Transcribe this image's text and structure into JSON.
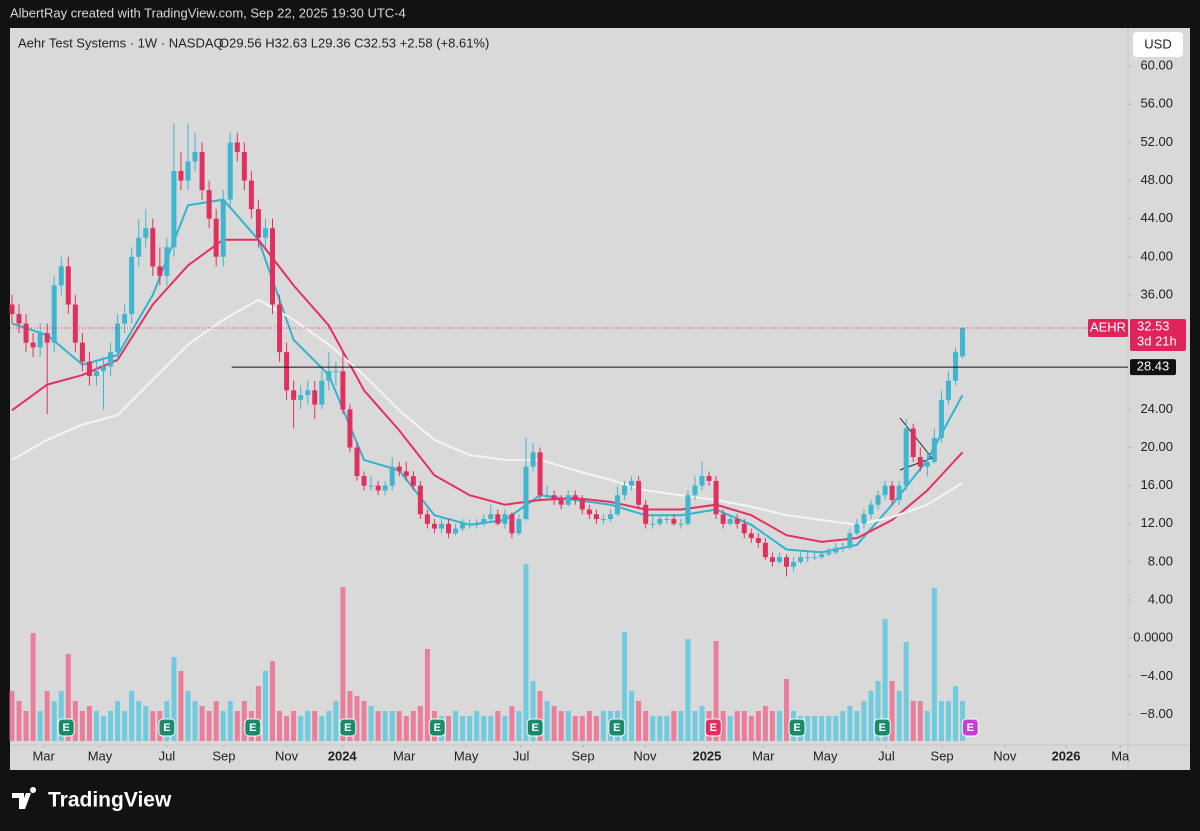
{
  "header": {
    "credit": "AlbertRay created with TradingView.com, Sep 22, 2025 19:30 UTC-4",
    "symbol": "Aehr Test Systems · 1W · NASDAQ",
    "ohlc": "O29.56 H32.63 L29.36 C32.53 +2.58 (+8.61%)",
    "currency": "USD"
  },
  "footer": {
    "brand": "TradingView"
  },
  "chart_data": {
    "type": "candlestick",
    "up_color": "#3fb5cf",
    "down_color": "#e0305e",
    "volume_up_color": "#5ec8de",
    "volume_down_color": "#ec6f91",
    "xlim": [
      -0.28,
      158.5
    ],
    "ylim": [
      -11.2,
      64
    ],
    "yticks": [
      {
        "value": 60,
        "label": "60.00"
      },
      {
        "value": 56,
        "label": "56.00"
      },
      {
        "value": 52,
        "label": "52.00"
      },
      {
        "value": 48,
        "label": "48.00"
      },
      {
        "value": 44,
        "label": "44.00"
      },
      {
        "value": 40,
        "label": "40.00"
      },
      {
        "value": 36,
        "label": "36.00"
      },
      {
        "value": 24,
        "label": "24.00"
      },
      {
        "value": 20,
        "label": "20.00"
      },
      {
        "value": 16,
        "label": "16.00"
      },
      {
        "value": 12,
        "label": "12.00"
      },
      {
        "value": 8,
        "label": "8.00"
      },
      {
        "value": 4,
        "label": "4.00"
      },
      {
        "value": 0,
        "label": "0.0000"
      },
      {
        "value": -4,
        "label": "−4.00"
      },
      {
        "value": -8,
        "label": "−8.00"
      }
    ],
    "xticks": [
      {
        "value": 4.5,
        "label": "Mar"
      },
      {
        "value": 12.5,
        "label": "May"
      },
      {
        "value": 22,
        "label": "Jul"
      },
      {
        "value": 30.1,
        "label": "Sep"
      },
      {
        "value": 39,
        "label": "Nov"
      },
      {
        "value": 46.9,
        "label": "2024"
      },
      {
        "value": 55.7,
        "label": "Mar"
      },
      {
        "value": 64.5,
        "label": "May"
      },
      {
        "value": 72.3,
        "label": "Jul"
      },
      {
        "value": 81.1,
        "label": "Sep"
      },
      {
        "value": 89.9,
        "label": "Nov"
      },
      {
        "value": 98.7,
        "label": "2025"
      },
      {
        "value": 106.7,
        "label": "Mar"
      },
      {
        "value": 115.5,
        "label": "May"
      },
      {
        "value": 124.2,
        "label": "Jul"
      },
      {
        "value": 132.1,
        "label": "Sep"
      },
      {
        "value": 141,
        "label": "Nov"
      },
      {
        "value": 149.7,
        "label": "2026"
      },
      {
        "value": 157.4,
        "label": "Ma"
      }
    ],
    "candles": [
      [
        35,
        36,
        33,
        34
      ],
      [
        34,
        35,
        32,
        33
      ],
      [
        33,
        34,
        30,
        31
      ],
      [
        31,
        32,
        29.5,
        30.5
      ],
      [
        30.5,
        33,
        29.5,
        32
      ],
      [
        32,
        33,
        23.5,
        31
      ],
      [
        31,
        38,
        30,
        37
      ],
      [
        37,
        40,
        36,
        39
      ],
      [
        39,
        40,
        34,
        35
      ],
      [
        35,
        36,
        30,
        31
      ],
      [
        31,
        32,
        28,
        29
      ],
      [
        29,
        30,
        26.5,
        27.5
      ],
      [
        27.5,
        29,
        26.5,
        28
      ],
      [
        28,
        29.5,
        24,
        28.5
      ],
      [
        28.5,
        31,
        27.5,
        30
      ],
      [
        30,
        34,
        29,
        33
      ],
      [
        33,
        35,
        32,
        34
      ],
      [
        34,
        41,
        33,
        40
      ],
      [
        40,
        44,
        39,
        42
      ],
      [
        42,
        45,
        41,
        43
      ],
      [
        43,
        44,
        38,
        39
      ],
      [
        39,
        41,
        37,
        38
      ],
      [
        38,
        42,
        37,
        41
      ],
      [
        41,
        54,
        40,
        49
      ],
      [
        49,
        51,
        47,
        48
      ],
      [
        48,
        54,
        47,
        50
      ],
      [
        50,
        53,
        49,
        51
      ],
      [
        51,
        52,
        46,
        47
      ],
      [
        47,
        48,
        43,
        44
      ],
      [
        44,
        45,
        39,
        40
      ],
      [
        40,
        47,
        39,
        46
      ],
      [
        46,
        53,
        45,
        52
      ],
      [
        52,
        53,
        50,
        51
      ],
      [
        51,
        52,
        47,
        48
      ],
      [
        48,
        49,
        44,
        45
      ],
      [
        45,
        46,
        41,
        42
      ],
      [
        42,
        44,
        41,
        43
      ],
      [
        43,
        44,
        34,
        35
      ],
      [
        35,
        36,
        29,
        30
      ],
      [
        30,
        31,
        25,
        26
      ],
      [
        26,
        27,
        22,
        25
      ],
      [
        25,
        26.5,
        24,
        25.5
      ],
      [
        25.5,
        27,
        24.5,
        26
      ],
      [
        26,
        27,
        23,
        24.5
      ],
      [
        24.5,
        28,
        24,
        27
      ],
      [
        27,
        30,
        26,
        28
      ],
      [
        28,
        29,
        26.5,
        28
      ],
      [
        28,
        30,
        23.5,
        24
      ],
      [
        24,
        24.5,
        19.5,
        20
      ],
      [
        20,
        20.5,
        16.5,
        17
      ],
      [
        17,
        17.5,
        15.5,
        16
      ],
      [
        16,
        17,
        15.5,
        16
      ],
      [
        16,
        16.5,
        15,
        15.5
      ],
      [
        15.5,
        16.5,
        15,
        16
      ],
      [
        16,
        19,
        15.5,
        18
      ],
      [
        18,
        18.5,
        17,
        17.5
      ],
      [
        17.5,
        18.5,
        16.5,
        17
      ],
      [
        17,
        17.5,
        15.5,
        16
      ],
      [
        16,
        16.5,
        12.5,
        13
      ],
      [
        13,
        13.5,
        11.5,
        12
      ],
      [
        12,
        12.5,
        11,
        11.5
      ],
      [
        11.5,
        12.5,
        11,
        12
      ],
      [
        12,
        12.5,
        10.5,
        11
      ],
      [
        11,
        12,
        10.8,
        11.5
      ],
      [
        11.5,
        12.5,
        11.2,
        12
      ],
      [
        12,
        12.5,
        11.5,
        12
      ],
      [
        12,
        12.5,
        11.5,
        12
      ],
      [
        12,
        13,
        11.8,
        12.5
      ],
      [
        12.5,
        14,
        12.3,
        13
      ],
      [
        13,
        13.5,
        11.8,
        12
      ],
      [
        12,
        13.5,
        11.5,
        13
      ],
      [
        13,
        13.2,
        10.5,
        11
      ],
      [
        11,
        13,
        10.8,
        12.5
      ],
      [
        12.5,
        21,
        12.3,
        18
      ],
      [
        18,
        20.5,
        17.5,
        19.5
      ],
      [
        19.5,
        20,
        14.5,
        15
      ],
      [
        15,
        16,
        14.5,
        15
      ],
      [
        15,
        15.5,
        14,
        14.5
      ],
      [
        14.5,
        15,
        13.5,
        14
      ],
      [
        14,
        15.5,
        13.8,
        15
      ],
      [
        15,
        15.5,
        14,
        14.5
      ],
      [
        14.5,
        15,
        13,
        13.5
      ],
      [
        13.5,
        14,
        12.5,
        13
      ],
      [
        13,
        13.5,
        12,
        12.5
      ],
      [
        12.5,
        13,
        12,
        12.5
      ],
      [
        12.5,
        13.5,
        12.2,
        13
      ],
      [
        13,
        16,
        12.8,
        15
      ],
      [
        15,
        16.5,
        14.5,
        16
      ],
      [
        16,
        17,
        15.5,
        16.5
      ],
      [
        16.5,
        17,
        13.5,
        14
      ],
      [
        14,
        14.5,
        11.5,
        12
      ],
      [
        12,
        13,
        11.5,
        12
      ],
      [
        12,
        13,
        11.8,
        12.5
      ],
      [
        12.5,
        13,
        12,
        12.5
      ],
      [
        12.5,
        13,
        11.8,
        12
      ],
      [
        12,
        12.5,
        11.5,
        12
      ],
      [
        12,
        15.5,
        11.8,
        15
      ],
      [
        15,
        17,
        14.5,
        16
      ],
      [
        16,
        18.5,
        15.5,
        17
      ],
      [
        17,
        17.5,
        16,
        16.5
      ],
      [
        16.5,
        17,
        12.5,
        13
      ],
      [
        13,
        13.5,
        11.5,
        12
      ],
      [
        12,
        13,
        11.8,
        12.5
      ],
      [
        12.5,
        13,
        11.5,
        12
      ],
      [
        12,
        12.5,
        10.5,
        11
      ],
      [
        11,
        11.5,
        10,
        10.5
      ],
      [
        10.5,
        11,
        9.5,
        10
      ],
      [
        10,
        10.5,
        8.2,
        8.5
      ],
      [
        8.5,
        9,
        7.5,
        8
      ],
      [
        8,
        9,
        7.8,
        8.5
      ],
      [
        8.5,
        8.8,
        6.5,
        7.5
      ],
      [
        7.5,
        8.5,
        7,
        8
      ],
      [
        8,
        9,
        7.8,
        8.5
      ],
      [
        8.5,
        9,
        8,
        8.5
      ],
      [
        8.5,
        9,
        8.2,
        8.5
      ],
      [
        8.5,
        9.2,
        8.3,
        8.8
      ],
      [
        8.8,
        9.5,
        8.6,
        9
      ],
      [
        9,
        10,
        8.8,
        9.5
      ],
      [
        9.5,
        10,
        9,
        9.5
      ],
      [
        9.5,
        11.5,
        9.3,
        11
      ],
      [
        11,
        12.5,
        10.8,
        12
      ],
      [
        12,
        13.5,
        11.5,
        13
      ],
      [
        13,
        14.5,
        12.5,
        14
      ],
      [
        14,
        15.5,
        13.5,
        15
      ],
      [
        15,
        16.5,
        14.5,
        16
      ],
      [
        16,
        16.5,
        14,
        14.5
      ],
      [
        14.5,
        16.5,
        14,
        16
      ],
      [
        16,
        23,
        15.5,
        22
      ],
      [
        22,
        22.5,
        18.5,
        19
      ],
      [
        19,
        20,
        17.5,
        18
      ],
      [
        18,
        19.5,
        17,
        18.5
      ],
      [
        18.5,
        22,
        18.3,
        21
      ],
      [
        21,
        26,
        20.5,
        25
      ],
      [
        25,
        28,
        24.5,
        27
      ],
      [
        27,
        30.5,
        26.5,
        30
      ],
      [
        29.56,
        32.63,
        29.36,
        32.53
      ]
    ],
    "volume": [
      5,
      4,
      3,
      10.8,
      3,
      5,
      4,
      5,
      8.7,
      4,
      3,
      3.5,
      3,
      2.5,
      3,
      4,
      3,
      5,
      4,
      3.5,
      3,
      3,
      4,
      8.4,
      7,
      5,
      4,
      3.5,
      3,
      4,
      3,
      4,
      3,
      4,
      3,
      5.5,
      7,
      8,
      3,
      2.5,
      3,
      2.5,
      3,
      3,
      2.5,
      3,
      4,
      15.4,
      5,
      4.5,
      4,
      3.5,
      3,
      3,
      3,
      3,
      2.5,
      3,
      3.5,
      9.2,
      3,
      2.5,
      2.5,
      3,
      2.5,
      2.5,
      3,
      2.5,
      2.5,
      3,
      2.5,
      3.5,
      3,
      17.7,
      6,
      5,
      4,
      3.5,
      3,
      3,
      2.5,
      2.5,
      3,
      2.5,
      3,
      3,
      3,
      10.9,
      5,
      4,
      3,
      2.5,
      2.5,
      2.5,
      3,
      3,
      10.2,
      3,
      3.5,
      3,
      10,
      3,
      2.5,
      3,
      3,
      2.5,
      3,
      3.5,
      3,
      3,
      6.2,
      3,
      2.5,
      2.5,
      2.5,
      2.5,
      2.5,
      2.5,
      3,
      3.5,
      3,
      4,
      5,
      6,
      12.2,
      6,
      5,
      9.9,
      4,
      4,
      3,
      15.3,
      4,
      4,
      5.5,
      4
    ],
    "moving_averages": {
      "x": [
        0,
        5,
        10,
        15,
        20,
        25,
        30,
        35,
        40,
        45,
        50,
        55,
        60,
        65,
        70,
        75,
        80,
        85,
        90,
        95,
        100,
        105,
        110,
        115,
        120,
        125,
        130,
        135
      ],
      "series": [
        {
          "color": "#34b3cf",
          "values": [
            33,
            31.8,
            28.7,
            29.7,
            36,
            45.4,
            46,
            41.8,
            31.3,
            27.6,
            18.7,
            17.6,
            12.9,
            11.9,
            12.4,
            15,
            14.5,
            14,
            12.9,
            12.9,
            13.5,
            11.9,
            9.3,
            9,
            9.8,
            14,
            18.7,
            25.5
          ]
        },
        {
          "color": "#e5315f",
          "values": [
            23.9,
            26.6,
            27.6,
            29.2,
            35,
            39.1,
            41.8,
            41.8,
            37,
            32.8,
            26,
            21.8,
            17.1,
            15,
            14,
            14.5,
            14.7,
            14.3,
            13.5,
            13.5,
            14,
            12.9,
            10.8,
            10.1,
            10.5,
            12.4,
            15.5,
            19.5
          ]
        },
        {
          "color": "#f4f4f4",
          "values": [
            18.7,
            20.8,
            22.4,
            23.4,
            27.1,
            30.8,
            33.4,
            35.5,
            33.4,
            30.8,
            27.6,
            23.9,
            20.8,
            19.2,
            18.7,
            18.7,
            17.6,
            16.6,
            15.5,
            15,
            14.5,
            13.8,
            12.9,
            12.4,
            11.9,
            12.7,
            14,
            16.3
          ]
        }
      ]
    },
    "hline": {
      "value": 28.43,
      "label": "28.43",
      "x_start": 31.2
    },
    "last_price": {
      "symbol": "AEHR",
      "label": "32.53",
      "countdown": "3d 21h",
      "color": "#e0245a"
    },
    "earnings": [
      {
        "x": 7.7,
        "label": "E",
        "color": "#1a8a6a"
      },
      {
        "x": 22,
        "label": "E",
        "color": "#1a8a6a"
      },
      {
        "x": 34.2,
        "label": "E",
        "color": "#1a8a6a"
      },
      {
        "x": 47.7,
        "label": "E",
        "color": "#1a8a6a"
      },
      {
        "x": 60.4,
        "label": "E",
        "color": "#1a8a6a"
      },
      {
        "x": 74.3,
        "label": "E",
        "color": "#1a8a6a"
      },
      {
        "x": 85.9,
        "label": "E",
        "color": "#1a8a6a"
      },
      {
        "x": 99.6,
        "label": "E",
        "color": "#e0305e"
      },
      {
        "x": 111.5,
        "label": "E",
        "color": "#1a8a6a"
      },
      {
        "x": 123.6,
        "label": "E",
        "color": "#1a8a6a"
      },
      {
        "x": 136.1,
        "label": "E",
        "color": "#c43fd6"
      }
    ]
  }
}
